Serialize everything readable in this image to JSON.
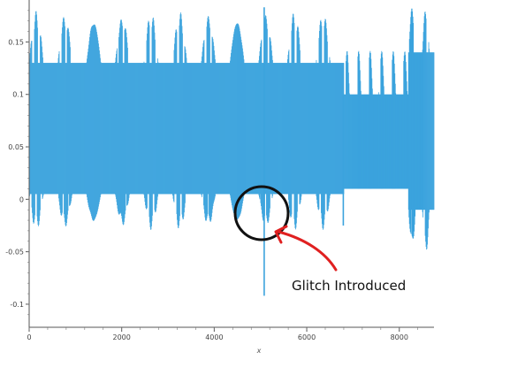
{
  "chart_data": {
    "type": "line",
    "title": "",
    "xlabel": "x",
    "ylabel": "",
    "xlim": [
      0,
      8750
    ],
    "ylim": [
      -0.122,
      0.19
    ],
    "x_ticks": [
      0,
      2000,
      4000,
      6000,
      8000
    ],
    "y_ticks": [
      -0.1,
      -0.05,
      0,
      0.05,
      0.1,
      0.15
    ],
    "x_tick_labels": [
      "0",
      "2000",
      "4000",
      "6000",
      "8000"
    ],
    "y_tick_labels": [
      "-0.1",
      "-0.05",
      "0",
      "0.05",
      "0.1",
      "0.15"
    ],
    "grid": false,
    "series": [
      {
        "color": "#3ba3dd",
        "segments": [
          {
            "x_start": 0,
            "x_end": 6800,
            "upper_base": 0.13,
            "upper_peak": 0.18,
            "lower_base": 0.005,
            "lower_trough": -0.03,
            "period": 620
          },
          {
            "x_start": 6800,
            "x_end": 8200,
            "upper_base": 0.1,
            "upper_peak": 0.15,
            "lower_base": 0.01,
            "lower_trough": 0.01,
            "period": 250
          },
          {
            "x_start": 8200,
            "x_end": 8750,
            "upper_base": 0.14,
            "upper_peak": 0.188,
            "lower_base": -0.01,
            "lower_trough": -0.055,
            "period": 300
          }
        ],
        "spikes": [
          {
            "x": 5080,
            "y_min": -0.092,
            "y_max": 0.183
          },
          {
            "x": 6790,
            "y_min": -0.025,
            "y_max": 0.1
          }
        ]
      }
    ],
    "annotations": [
      {
        "text": "Glitch Introduced",
        "target_x": 5050,
        "target_y": -0.012,
        "color_circle": "#111111",
        "color_arrow": "#e02020"
      }
    ]
  }
}
